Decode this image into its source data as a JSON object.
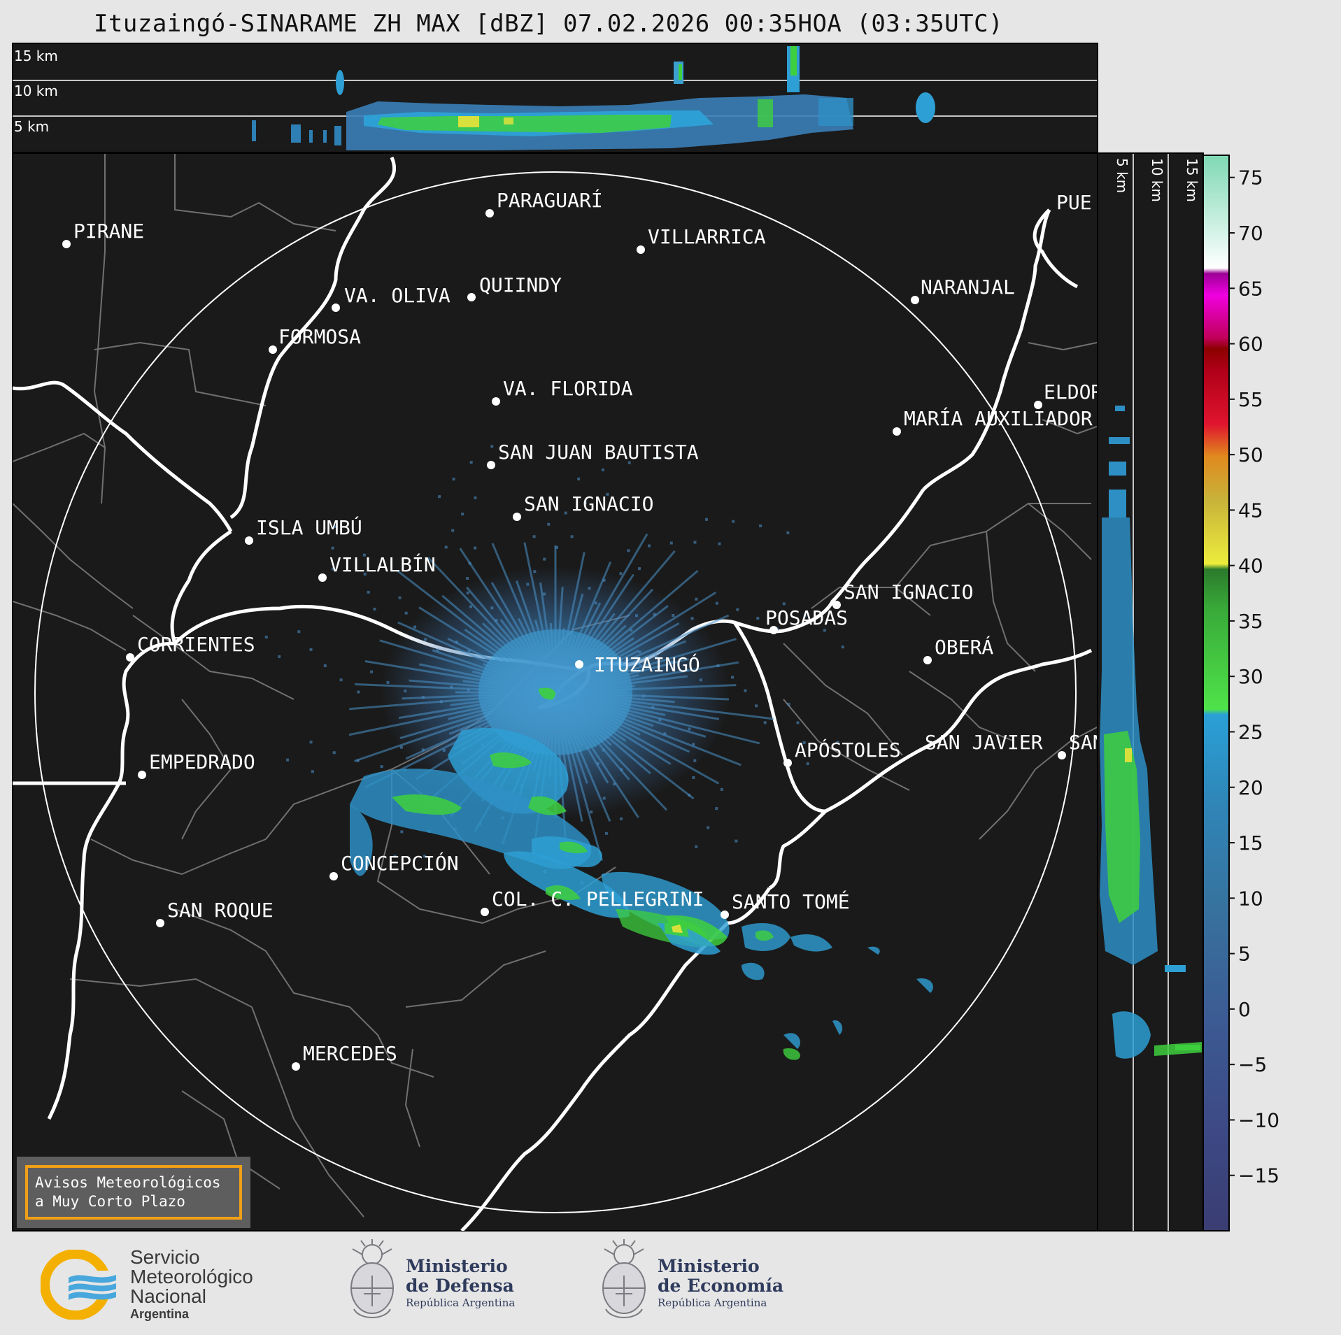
{
  "title": "Ituzaingó-SINARAME ZH MAX [dBZ] 07.02.2026 00:35HOA (03:35UTC)",
  "top_profile": {
    "height_labels": [
      "15 km",
      "10 km",
      "5 km"
    ]
  },
  "side_profile": {
    "height_labels": [
      "5 km",
      "10 km",
      "15 km"
    ]
  },
  "colorbar": {
    "ticks": [
      "75",
      "70",
      "65",
      "60",
      "55",
      "50",
      "45",
      "40",
      "35",
      "30",
      "25",
      "20",
      "15",
      "10",
      "5",
      "0",
      "−5",
      "−10",
      "−15"
    ],
    "tick_values": [
      75,
      70,
      65,
      60,
      55,
      50,
      45,
      40,
      35,
      30,
      25,
      20,
      15,
      10,
      5,
      0,
      -5,
      -10,
      -15
    ],
    "range": [
      -20,
      77
    ],
    "unit": "dBZ"
  },
  "map": {
    "radar_site": "ITUZAINGÓ",
    "cities": [
      {
        "name": "PIRANE",
        "dot": true
      },
      {
        "name": "PARAGUARÍ",
        "dot": true
      },
      {
        "name": "VILLARRICA",
        "dot": true
      },
      {
        "name": "QUIINDY",
        "dot": true
      },
      {
        "name": "VA. OLIVA",
        "dot": true
      },
      {
        "name": "FORMOSA",
        "dot": true
      },
      {
        "name": "NARANJAL",
        "dot": true
      },
      {
        "name": "PUE",
        "dot": false
      },
      {
        "name": "VA. FLORIDA",
        "dot": true
      },
      {
        "name": "ELDOR",
        "dot": true
      },
      {
        "name": "MARÍA AUXILIADOR",
        "dot": true
      },
      {
        "name": "SAN JUAN BAUTISTA",
        "dot": true
      },
      {
        "name": "SAN IGNACIO",
        "dot": true
      },
      {
        "name": "ISLA UMBÚ",
        "dot": true
      },
      {
        "name": "VILLALBÍN",
        "dot": true
      },
      {
        "name": "SAN IGNACIO",
        "dot": true
      },
      {
        "name": "POSADAS",
        "dot": true
      },
      {
        "name": "CORRIENTES",
        "dot": true
      },
      {
        "name": "ITUZAINGÓ",
        "dot": true
      },
      {
        "name": "OBERÁ",
        "dot": true
      },
      {
        "name": "EMPEDRADO",
        "dot": true
      },
      {
        "name": "APÓSTOLES",
        "dot": true
      },
      {
        "name": "SAN JAVIER",
        "dot": false
      },
      {
        "name": "SAN",
        "dot": true
      },
      {
        "name": "CONCEPCIÓN",
        "dot": true
      },
      {
        "name": "SAN ROQUE",
        "dot": true
      },
      {
        "name": "COL. C. PELLEGRINI",
        "dot": true
      },
      {
        "name": "SANTO TOMÉ",
        "dot": true
      },
      {
        "name": "MERCEDES",
        "dot": true
      }
    ]
  },
  "warning_box": {
    "line1": "Avisos Meteorológicos",
    "line2": "a Muy Corto Plazo"
  },
  "footer": {
    "smn": {
      "line1": "Servicio",
      "line2": "Meteorológico",
      "line3": "Nacional",
      "line4": "Argentina"
    },
    "defensa": {
      "line1": "Ministerio",
      "line2": "de Defensa",
      "line3": "República Argentina"
    },
    "economia": {
      "line1": "Ministerio",
      "line2": "de Economía",
      "line3": "República Argentina"
    }
  },
  "colors": {
    "background": "#1a1a1a",
    "page": "#e6e6e6",
    "echo_weak": "#3f8fc7",
    "echo_mid": "#2e9fd4",
    "echo_green": "#3ecf3e",
    "echo_yellow": "#e8e23a",
    "accent_orange": "#f0a017"
  }
}
